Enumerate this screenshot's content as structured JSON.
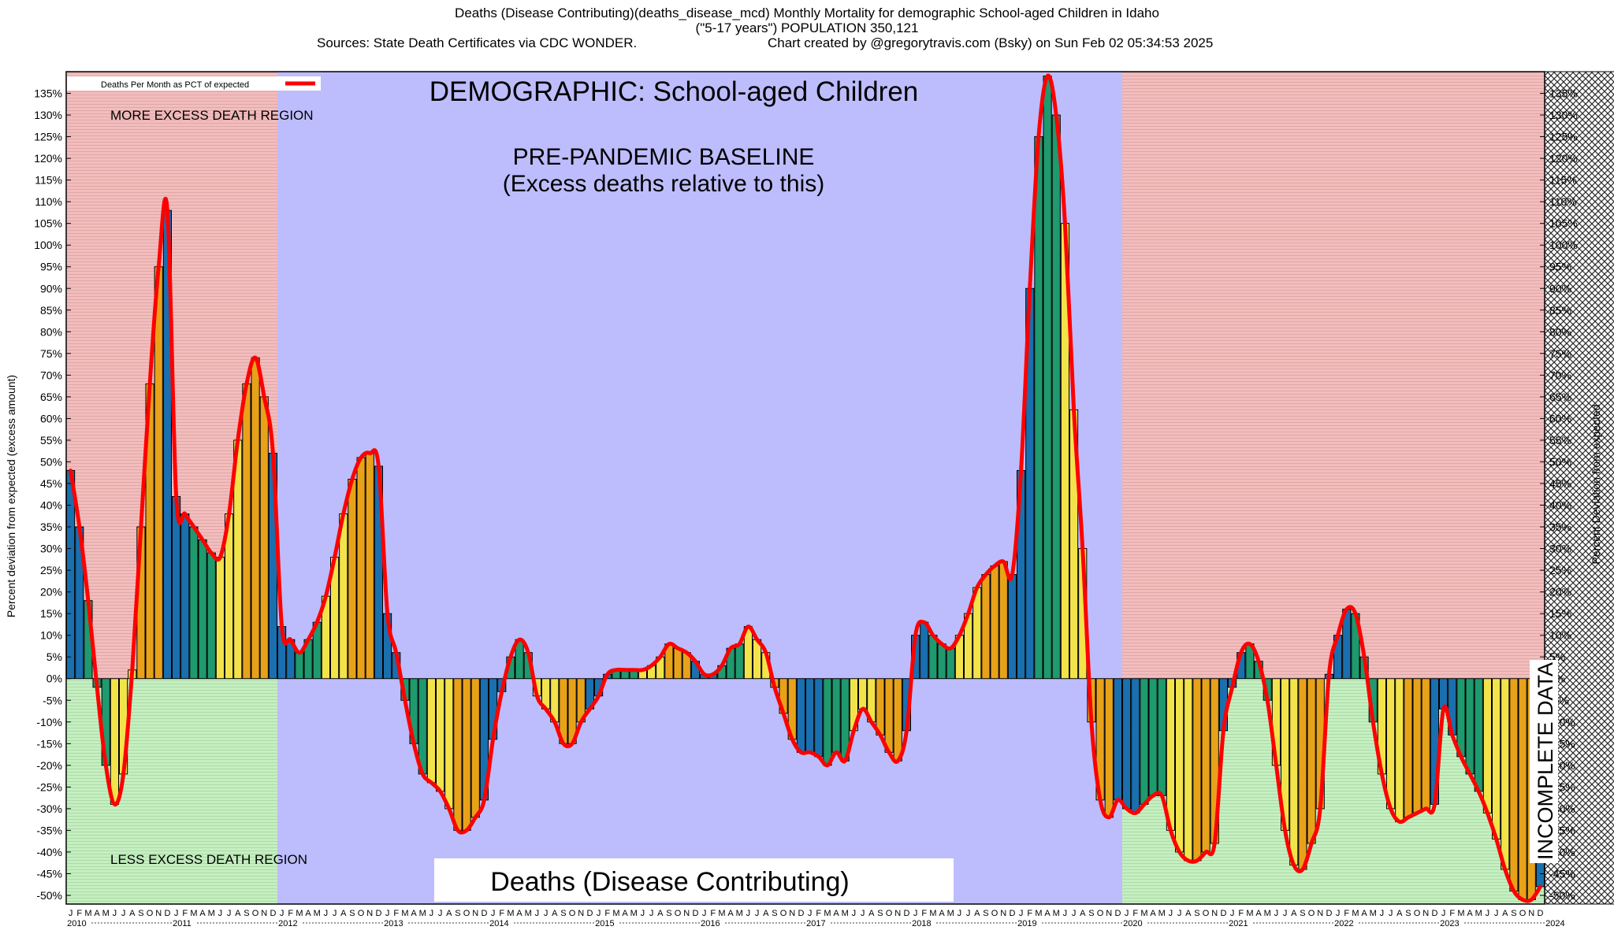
{
  "header": {
    "line1": "Deaths (Disease Contributing)(deaths_disease_mcd) Monthly Mortality for demographic School-aged Children in Idaho",
    "line2": "(\"5-17 years\") POPULATION 350,121",
    "line3_left": "Sources: State Death Certificates via CDC WONDER.",
    "line3_right": "Chart created by @gregorytravis.com (Bsky) on Sun Feb 02 05:34:53 2025"
  },
  "chart_data": {
    "type": "bar",
    "title": "Deaths (Disease Contributing)(deaths_disease_mcd) Monthly Mortality for demographic School-aged Children in Idaho",
    "ylabel_left": "Percent deviation from expected (excess amount)",
    "ylabel_right": "Percent Deviation from expected",
    "ylim": [
      -52,
      140
    ],
    "yticks": [
      -50,
      -45,
      -40,
      -35,
      -30,
      -25,
      -20,
      -15,
      -10,
      -5,
      0,
      5,
      10,
      15,
      20,
      25,
      30,
      35,
      40,
      45,
      50,
      55,
      60,
      65,
      70,
      75,
      80,
      85,
      90,
      95,
      100,
      105,
      110,
      115,
      120,
      125,
      130,
      135
    ],
    "month_letters": [
      "J",
      "F",
      "M",
      "A",
      "M",
      "J",
      "J",
      "A",
      "S",
      "O",
      "N",
      "D"
    ],
    "years": [
      "2010",
      "2011",
      "2012",
      "2013",
      "2014",
      "2015",
      "2016",
      "2017",
      "2018",
      "2019",
      "2020",
      "2021",
      "2022",
      "2023",
      "2024"
    ],
    "legend": {
      "label": "Deaths Per Month as PCT of expected",
      "color": "#ff0000",
      "placement": "top-left"
    },
    "annotations": {
      "demographic": "DEMOGRAPHIC: School-aged Children",
      "baseline_1": "PRE-PANDEMIC BASELINE",
      "baseline_2": "(Excess deaths relative to this)",
      "more_region": "MORE EXCESS DEATH REGION",
      "less_region": "LESS EXCESS DEATH REGION",
      "incomplete": "INCOMPLETE DATA",
      "metric": "Deaths (Disease Contributing)"
    },
    "season_colors": {
      "winter": "#1a6fae",
      "spring": "#1e9a6e",
      "summer": "#f2e34a",
      "fall": "#e8a21a"
    },
    "region_colors": {
      "excess": "#f4bcbc",
      "deficit": "#c4f0c0",
      "baseline": "#bdbdfd"
    },
    "baseline_period": [
      "2012-01",
      "2019-12"
    ],
    "incomplete_period": [
      "2024-01",
      "2024-12"
    ],
    "series": [
      {
        "name": "Deaths Per Month as PCT of expected",
        "start": "2010-01",
        "values": [
          48,
          35,
          18,
          -2,
          -20,
          -29,
          -22,
          2,
          35,
          68,
          95,
          108,
          42,
          38,
          35,
          32,
          29,
          28,
          38,
          55,
          68,
          74,
          65,
          52,
          12,
          9,
          6,
          9,
          13,
          19,
          28,
          38,
          46,
          51,
          52,
          49,
          15,
          6,
          -5,
          -15,
          -22,
          -24,
          -26,
          -30,
          -35,
          -35,
          -32,
          -28,
          -14,
          -3,
          5,
          9,
          6,
          -4,
          -7,
          -10,
          -15,
          -15,
          -10,
          -7,
          -4,
          1,
          2,
          2,
          2,
          2,
          3,
          5,
          8,
          7,
          6,
          4,
          1,
          1,
          3,
          7,
          8,
          12,
          9,
          6,
          -2,
          -8,
          -14,
          -17,
          -17,
          -18,
          -20,
          -17,
          -19,
          -12,
          -7,
          -10,
          -13,
          -17,
          -19,
          -12,
          10,
          13,
          10,
          8,
          7,
          10,
          15,
          21,
          24,
          26,
          27,
          24,
          48,
          90,
          125,
          139,
          130,
          105,
          62,
          30,
          -10,
          -28,
          -32,
          -28,
          -30,
          -31,
          -29,
          -27,
          -27,
          -35,
          -40,
          -42,
          -42,
          -40,
          -38,
          -12,
          -2,
          6,
          8,
          4,
          -5,
          -20,
          -35,
          -43,
          -44,
          -38,
          -30,
          1,
          10,
          16,
          15,
          5,
          -10,
          -22,
          -30,
          -33,
          -32,
          -31,
          -30,
          -29,
          -7,
          -13,
          -18,
          -22,
          -26,
          -31,
          -37,
          -44,
          -49,
          -51,
          -51,
          -48
        ]
      }
    ]
  }
}
